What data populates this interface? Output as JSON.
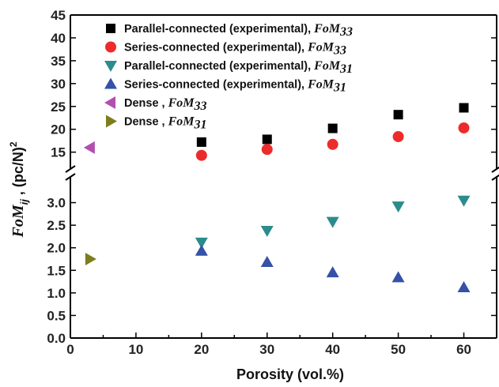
{
  "chart_data": {
    "type": "scatter",
    "xlabel": "Porosity (vol.%)",
    "ylabel": "FoM_ij , (pc/N)^2",
    "ylabel_parts": {
      "main": "FoM",
      "sub": "ij",
      "rest": " , (pc/N)",
      "sup": "2"
    },
    "xlim": [
      0,
      65
    ],
    "ylim_lower": [
      0,
      3.5
    ],
    "ylim_upper": [
      12,
      45
    ],
    "axis_break": true,
    "x_ticks": [
      "0",
      "10",
      "20",
      "30",
      "40",
      "50",
      "60"
    ],
    "y_ticks_lower": [
      "0.0",
      "0.5",
      "1.0",
      "1.5",
      "2.0",
      "2.5",
      "3.0"
    ],
    "y_ticks_upper": [
      "15",
      "20",
      "25",
      "30",
      "35",
      "40",
      "45"
    ],
    "legend_position": "top-center",
    "grid": false,
    "series": [
      {
        "label_main": "Parallel-connected (experimental), ",
        "label_fom": "FoM",
        "label_sub": "33",
        "marker": "square",
        "color": "#000000",
        "x": [
          20,
          30,
          40,
          50,
          60
        ],
        "y": [
          17.2,
          17.8,
          20.2,
          23.2,
          24.7
        ]
      },
      {
        "label_main": "Series-connected (experimental), ",
        "label_fom": "FoM",
        "label_sub": "33",
        "marker": "circle",
        "color": "#ee2b2b",
        "x": [
          20,
          30,
          40,
          50,
          60
        ],
        "y": [
          14.3,
          15.6,
          16.7,
          18.4,
          20.3
        ]
      },
      {
        "label_main": "Parallel-connected (experimental), ",
        "label_fom": "FoM",
        "label_sub": "31",
        "marker": "triangle-down",
        "color": "#2b8d8b",
        "x": [
          20,
          30,
          40,
          50,
          60
        ],
        "y": [
          2.12,
          2.38,
          2.58,
          2.92,
          3.05
        ]
      },
      {
        "label_main": "Series-connected (experimental), ",
        "label_fom": "FoM",
        "label_sub": "31",
        "marker": "triangle-up",
        "color": "#3551a8",
        "x": [
          20,
          30,
          40,
          50,
          60
        ],
        "y": [
          1.93,
          1.68,
          1.45,
          1.34,
          1.12
        ]
      },
      {
        "label_main": "Dense , ",
        "label_fom": "FoM",
        "label_sub": "33",
        "marker": "triangle-left",
        "color": "#b24fb0",
        "x": [
          3
        ],
        "y": [
          16.0
        ]
      },
      {
        "label_main": "Dense , ",
        "label_fom": "FoM",
        "label_sub": "31",
        "marker": "triangle-right",
        "color": "#7d7d1e",
        "x": [
          3
        ],
        "y": [
          1.75
        ]
      }
    ]
  }
}
